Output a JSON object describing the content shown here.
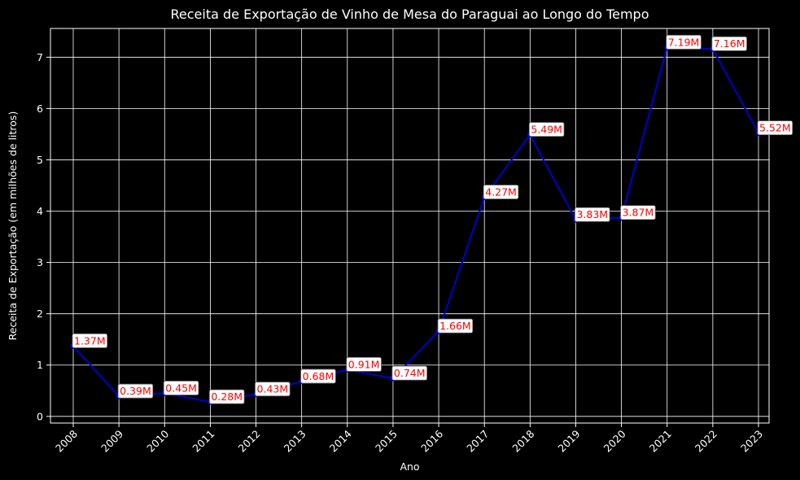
{
  "chart_data": {
    "type": "line",
    "title": "Receita de Exportação de Vinho de Mesa do Paraguai ao Longo do Tempo",
    "xlabel": "Ano",
    "ylabel": "Receita de Exportação (em milhões de litros)",
    "x": [
      "2008",
      "2009",
      "2010",
      "2011",
      "2012",
      "2013",
      "2014",
      "2015",
      "2016",
      "2017",
      "2018",
      "2019",
      "2020",
      "2021",
      "2022",
      "2023"
    ],
    "series": [
      {
        "values": [
          1.37,
          0.39,
          0.45,
          0.28,
          0.43,
          0.68,
          0.91,
          0.74,
          1.66,
          4.27,
          5.49,
          3.83,
          3.87,
          7.19,
          7.16,
          5.52
        ],
        "labels": [
          "1.37M",
          "0.39M",
          "0.45M",
          "0.28M",
          "0.43M",
          "0.68M",
          "0.91M",
          "0.74M",
          "1.66M",
          "4.27M",
          "5.49M",
          "3.83M",
          "3.87M",
          "7.19M",
          "7.16M",
          "5.52M"
        ],
        "color": "#0000cd"
      }
    ],
    "yticks": [
      "0",
      "1",
      "2",
      "3",
      "4",
      "5",
      "6",
      "7"
    ],
    "ylim": [
      -0.13,
      7.56
    ],
    "grid": true,
    "colors": {
      "background": "#000000",
      "text": "#ffffff",
      "data_label": "#ff0000"
    }
  }
}
